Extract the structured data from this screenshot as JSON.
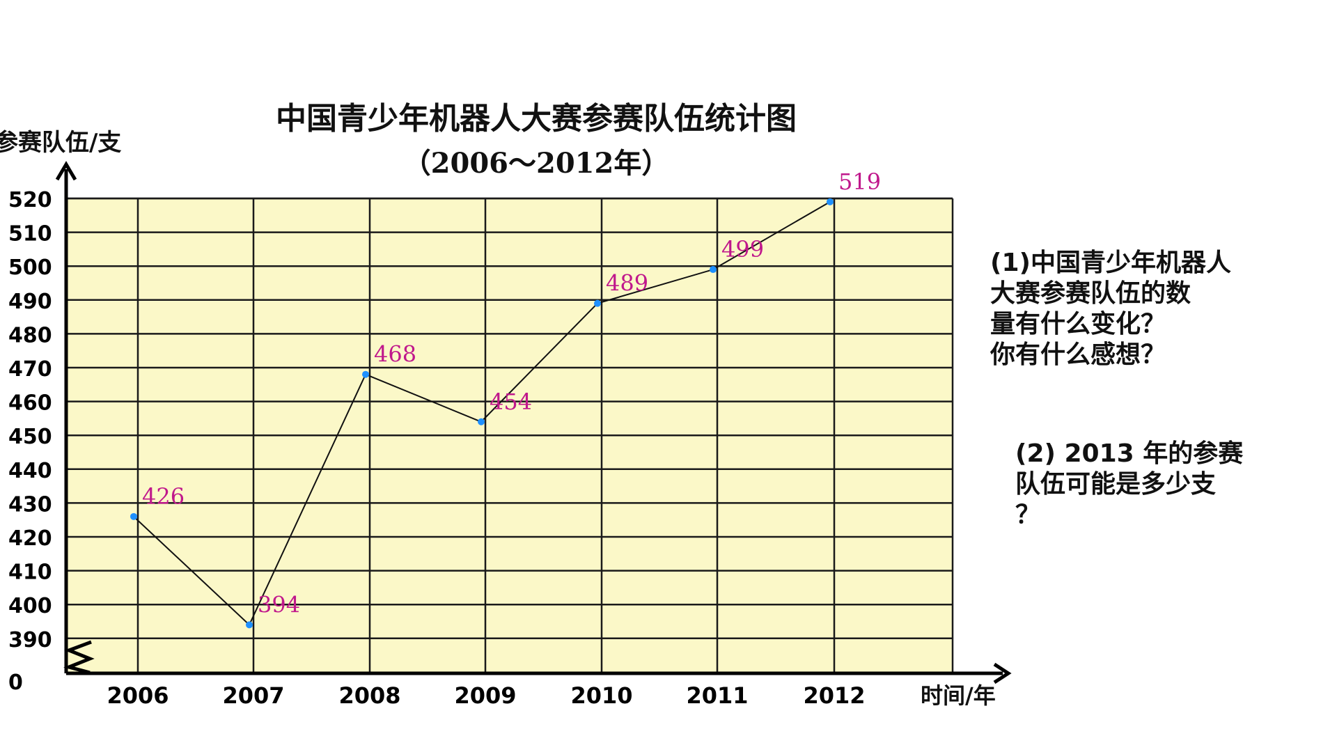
{
  "chart_data": {
    "type": "line",
    "title": "中国青少年机器人大赛参赛队伍统计图",
    "subtitle": "（2006～2012年）",
    "ylabel": "参赛队伍/支",
    "xlabel": "时间/年",
    "categories": [
      "2006",
      "2007",
      "2008",
      "2009",
      "2010",
      "2011",
      "2012"
    ],
    "values": [
      426,
      394,
      468,
      454,
      489,
      499,
      519
    ],
    "data_labels": [
      "426",
      "394",
      "468",
      "454",
      "489",
      "499",
      "519"
    ],
    "ylim": [
      390,
      520
    ],
    "y_ticks": [
      "520",
      "510",
      "500",
      "490",
      "480",
      "470",
      "460",
      "450",
      "440",
      "430",
      "420",
      "410",
      "400",
      "390",
      "0"
    ],
    "y_axis_break": true,
    "grid": true,
    "legend": "none",
    "colors": {
      "plot_bg": "#fbf8c8",
      "grid": "#1a1a1a",
      "line": "#111111",
      "point": "#1e90ff",
      "data_label": "#c0188c"
    }
  },
  "questions": {
    "q1": "(1)中国青少年机器人\n      大赛参赛队伍的数\n      量有什么变化？\n        你有什么感想？",
    "q2": "(2) 2013 年的参赛\n队伍可能是多少支\n？"
  }
}
